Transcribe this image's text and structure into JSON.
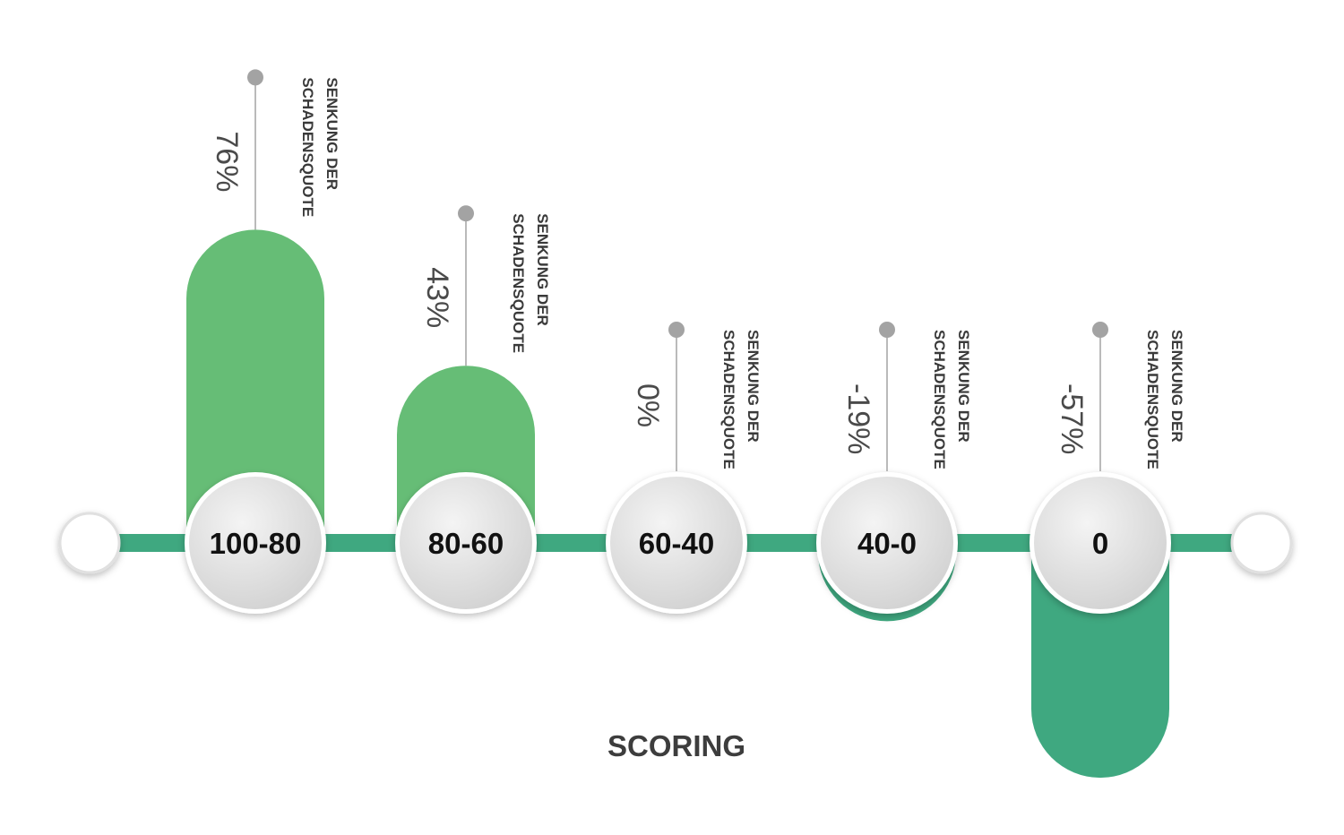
{
  "chart_data": {
    "type": "bar",
    "title": "",
    "xlabel": "SCORING",
    "ylabel": "",
    "categories": [
      "100-80",
      "80-60",
      "60-40",
      "40-0",
      "0"
    ],
    "values": [
      76,
      43,
      0,
      -19,
      -57
    ],
    "value_labels": [
      "76%",
      "43%",
      "0%",
      "-19%",
      "-57%"
    ],
    "bar_caption": [
      "SENKUNG DER",
      "SCHADENSQUOTE"
    ],
    "ylim": [
      -57,
      76
    ],
    "grid": false,
    "legend": "none",
    "colors": {
      "positive": "#66bd76",
      "negative": "#3fa880",
      "axis_line": "#3fa880",
      "node_fill": "#e6e6e6",
      "leader": "#a3a3a3"
    }
  }
}
